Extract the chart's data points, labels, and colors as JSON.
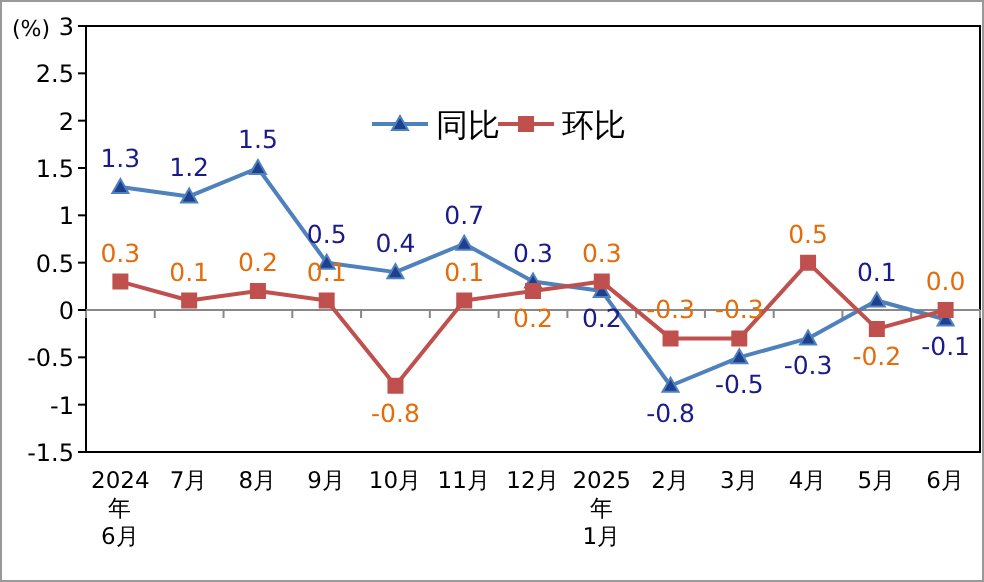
{
  "chart_data": {
    "type": "line",
    "ylabel": "(%)",
    "categories": [
      "2024\n年\n6月",
      "7月",
      "8月",
      "9月",
      "10月",
      "11月",
      "12月",
      "2025\n年\n1月",
      "2月",
      "3月",
      "4月",
      "5月",
      "6月"
    ],
    "series": [
      {
        "name": "同比",
        "color": "#4f81bd",
        "marker": "triangle",
        "values": [
          1.3,
          1.2,
          1.5,
          0.5,
          0.4,
          0.7,
          0.3,
          0.2,
          -0.8,
          -0.5,
          -0.3,
          0.1,
          -0.1
        ],
        "value_labels": [
          "1.3",
          "1.2",
          "1.5",
          "0.5",
          "0.4",
          "0.7",
          "0.3",
          "0.2",
          "-0.8",
          "-0.5",
          "-0.3",
          "0.1",
          "-0.1"
        ]
      },
      {
        "name": "环比",
        "color": "#c0504d",
        "marker": "square",
        "values": [
          0.3,
          0.1,
          0.2,
          0.1,
          -0.8,
          0.1,
          0.2,
          0.3,
          -0.3,
          -0.3,
          0.5,
          -0.2,
          0.0
        ],
        "value_labels": [
          "0.3",
          "0.1",
          "0.2",
          "0.1",
          "-0.8",
          "0.1",
          "0.2",
          "0.3",
          "-0.3",
          "-0.3",
          "0.5",
          "-0.2",
          "0.0"
        ]
      }
    ],
    "ylim": [
      -1.5,
      3
    ],
    "yticks": [
      -1.5,
      -1,
      -0.5,
      0,
      0.5,
      1,
      1.5,
      2,
      2.5,
      3
    ],
    "legend": "top"
  }
}
